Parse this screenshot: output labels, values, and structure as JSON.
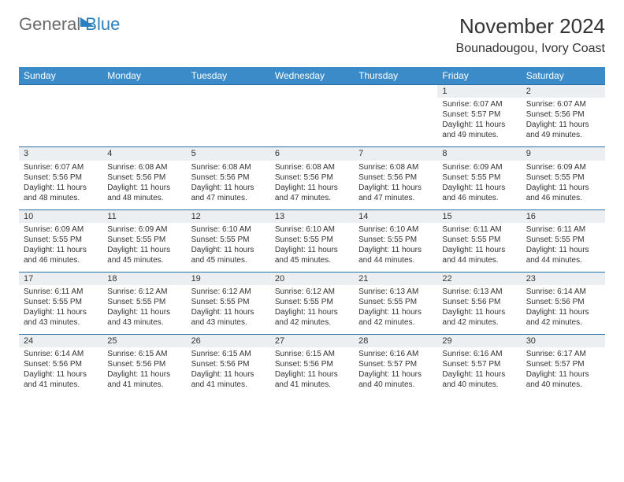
{
  "logo": {
    "text1": "General",
    "text2": "Blue"
  },
  "header": {
    "title": "November 2024",
    "location": "Bounadougou, Ivory Coast"
  },
  "colors": {
    "header_bg": "#3b8bc9",
    "daynum_bg": "#eceff1",
    "border": "#2a6fa3",
    "text": "#333333",
    "logo_grey": "#6b6b6b",
    "logo_blue": "#2a7fbf"
  },
  "weekdays": [
    "Sunday",
    "Monday",
    "Tuesday",
    "Wednesday",
    "Thursday",
    "Friday",
    "Saturday"
  ],
  "weeks": [
    {
      "nums": [
        "",
        "",
        "",
        "",
        "",
        "1",
        "2"
      ],
      "cells": [
        "",
        "",
        "",
        "",
        "",
        "Sunrise: 6:07 AM\nSunset: 5:57 PM\nDaylight: 11 hours and 49 minutes.",
        "Sunrise: 6:07 AM\nSunset: 5:56 PM\nDaylight: 11 hours and 49 minutes."
      ]
    },
    {
      "nums": [
        "3",
        "4",
        "5",
        "6",
        "7",
        "8",
        "9"
      ],
      "cells": [
        "Sunrise: 6:07 AM\nSunset: 5:56 PM\nDaylight: 11 hours and 48 minutes.",
        "Sunrise: 6:08 AM\nSunset: 5:56 PM\nDaylight: 11 hours and 48 minutes.",
        "Sunrise: 6:08 AM\nSunset: 5:56 PM\nDaylight: 11 hours and 47 minutes.",
        "Sunrise: 6:08 AM\nSunset: 5:56 PM\nDaylight: 11 hours and 47 minutes.",
        "Sunrise: 6:08 AM\nSunset: 5:56 PM\nDaylight: 11 hours and 47 minutes.",
        "Sunrise: 6:09 AM\nSunset: 5:55 PM\nDaylight: 11 hours and 46 minutes.",
        "Sunrise: 6:09 AM\nSunset: 5:55 PM\nDaylight: 11 hours and 46 minutes."
      ]
    },
    {
      "nums": [
        "10",
        "11",
        "12",
        "13",
        "14",
        "15",
        "16"
      ],
      "cells": [
        "Sunrise: 6:09 AM\nSunset: 5:55 PM\nDaylight: 11 hours and 46 minutes.",
        "Sunrise: 6:09 AM\nSunset: 5:55 PM\nDaylight: 11 hours and 45 minutes.",
        "Sunrise: 6:10 AM\nSunset: 5:55 PM\nDaylight: 11 hours and 45 minutes.",
        "Sunrise: 6:10 AM\nSunset: 5:55 PM\nDaylight: 11 hours and 45 minutes.",
        "Sunrise: 6:10 AM\nSunset: 5:55 PM\nDaylight: 11 hours and 44 minutes.",
        "Sunrise: 6:11 AM\nSunset: 5:55 PM\nDaylight: 11 hours and 44 minutes.",
        "Sunrise: 6:11 AM\nSunset: 5:55 PM\nDaylight: 11 hours and 44 minutes."
      ]
    },
    {
      "nums": [
        "17",
        "18",
        "19",
        "20",
        "21",
        "22",
        "23"
      ],
      "cells": [
        "Sunrise: 6:11 AM\nSunset: 5:55 PM\nDaylight: 11 hours and 43 minutes.",
        "Sunrise: 6:12 AM\nSunset: 5:55 PM\nDaylight: 11 hours and 43 minutes.",
        "Sunrise: 6:12 AM\nSunset: 5:55 PM\nDaylight: 11 hours and 43 minutes.",
        "Sunrise: 6:12 AM\nSunset: 5:55 PM\nDaylight: 11 hours and 42 minutes.",
        "Sunrise: 6:13 AM\nSunset: 5:55 PM\nDaylight: 11 hours and 42 minutes.",
        "Sunrise: 6:13 AM\nSunset: 5:56 PM\nDaylight: 11 hours and 42 minutes.",
        "Sunrise: 6:14 AM\nSunset: 5:56 PM\nDaylight: 11 hours and 42 minutes."
      ]
    },
    {
      "nums": [
        "24",
        "25",
        "26",
        "27",
        "28",
        "29",
        "30"
      ],
      "cells": [
        "Sunrise: 6:14 AM\nSunset: 5:56 PM\nDaylight: 11 hours and 41 minutes.",
        "Sunrise: 6:15 AM\nSunset: 5:56 PM\nDaylight: 11 hours and 41 minutes.",
        "Sunrise: 6:15 AM\nSunset: 5:56 PM\nDaylight: 11 hours and 41 minutes.",
        "Sunrise: 6:15 AM\nSunset: 5:56 PM\nDaylight: 11 hours and 41 minutes.",
        "Sunrise: 6:16 AM\nSunset: 5:57 PM\nDaylight: 11 hours and 40 minutes.",
        "Sunrise: 6:16 AM\nSunset: 5:57 PM\nDaylight: 11 hours and 40 minutes.",
        "Sunrise: 6:17 AM\nSunset: 5:57 PM\nDaylight: 11 hours and 40 minutes."
      ]
    }
  ]
}
